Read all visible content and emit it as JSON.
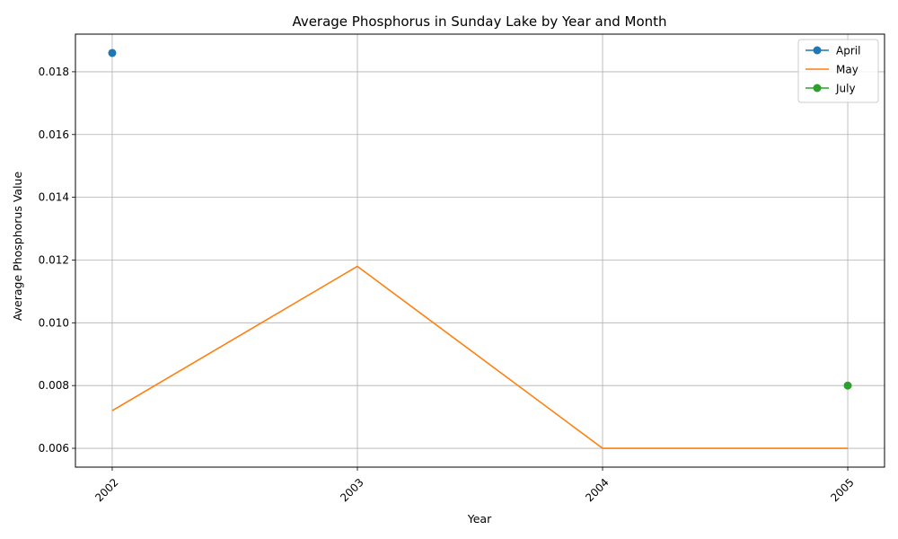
{
  "chart_data": {
    "type": "line",
    "title": "Average Phosphorus in Sunday Lake by Year and Month",
    "xlabel": "Year",
    "ylabel": "Average Phosphorus Value",
    "xlim": [
      2001.85,
      2005.15
    ],
    "ylim": [
      0.0054,
      0.0192
    ],
    "x_ticks": [
      2002,
      2003,
      2004,
      2005
    ],
    "x_tick_labels": [
      "2002",
      "2003",
      "2004",
      "2005"
    ],
    "y_ticks": [
      0.006,
      0.008,
      0.01,
      0.012,
      0.014,
      0.016,
      0.018
    ],
    "y_tick_labels": [
      "0.006",
      "0.008",
      "0.010",
      "0.012",
      "0.014",
      "0.016",
      "0.018"
    ],
    "grid": true,
    "legend_position": "top-right",
    "series": [
      {
        "name": "April",
        "color": "#1f77b4",
        "marker": "circle",
        "x": [
          2002
        ],
        "values": [
          0.0186
        ]
      },
      {
        "name": "May",
        "color": "#ff7f0e",
        "marker": "none",
        "x": [
          2002,
          2003,
          2004,
          2005
        ],
        "values": [
          0.0072,
          0.0118,
          0.006,
          0.006
        ]
      },
      {
        "name": "July",
        "color": "#2ca02c",
        "marker": "circle",
        "x": [
          2005
        ],
        "values": [
          0.008
        ]
      }
    ]
  }
}
